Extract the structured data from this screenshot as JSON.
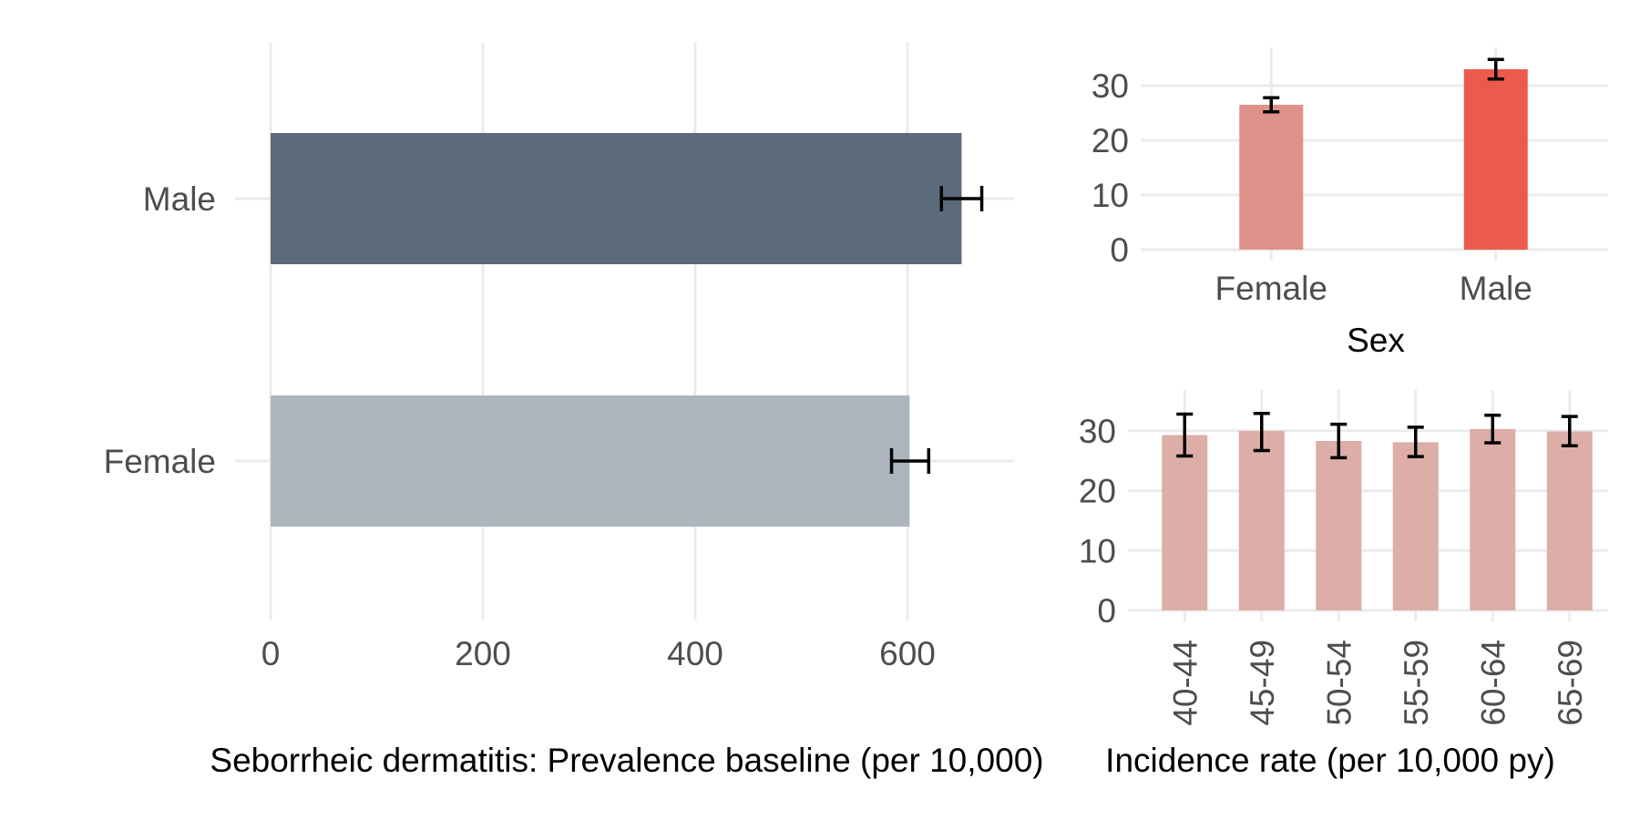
{
  "chart_data": [
    {
      "type": "bar",
      "orientation": "horizontal",
      "categories": [
        "Female",
        "Male"
      ],
      "values": [
        602,
        651
      ],
      "error_low": [
        585,
        632
      ],
      "error_high": [
        620,
        670
      ],
      "bar_colors": [
        "#adb5bf",
        "#5c6b7b"
      ],
      "xlabel": "Seborrheic dermatitis: Prevalence baseline (per 10,000)",
      "ylabel": "",
      "xlim": [
        0,
        700
      ],
      "xticks": [
        "0",
        "200",
        "400",
        "600"
      ],
      "grid": true
    },
    {
      "type": "bar",
      "categories": [
        "Female",
        "Male"
      ],
      "values": [
        26.5,
        33.0
      ],
      "error_low": [
        25.2,
        31.2
      ],
      "error_high": [
        27.8,
        34.8
      ],
      "bar_colors": [
        "#de928a",
        "#ec5a4b"
      ],
      "xlabel": "Sex",
      "ylabel": "",
      "ylim": [
        0,
        35
      ],
      "yticks": [
        "0",
        "10",
        "20",
        "30"
      ],
      "grid": true
    },
    {
      "type": "bar",
      "categories": [
        "40-44",
        "45-49",
        "50-54",
        "55-59",
        "60-64",
        "65-69"
      ],
      "values": [
        29.3,
        30.0,
        28.3,
        28.1,
        30.3,
        29.9
      ],
      "error_low": [
        25.8,
        26.7,
        25.5,
        25.7,
        28.0,
        27.5
      ],
      "error_high": [
        32.8,
        32.9,
        31.1,
        30.6,
        32.6,
        32.4
      ],
      "bar_color": "#dcaea7",
      "xlabel": "Incidence rate (per 10,000 py)",
      "ylabel": "",
      "ylim": [
        0,
        35
      ],
      "yticks": [
        "0",
        "10",
        "20",
        "30"
      ],
      "grid": true
    }
  ]
}
